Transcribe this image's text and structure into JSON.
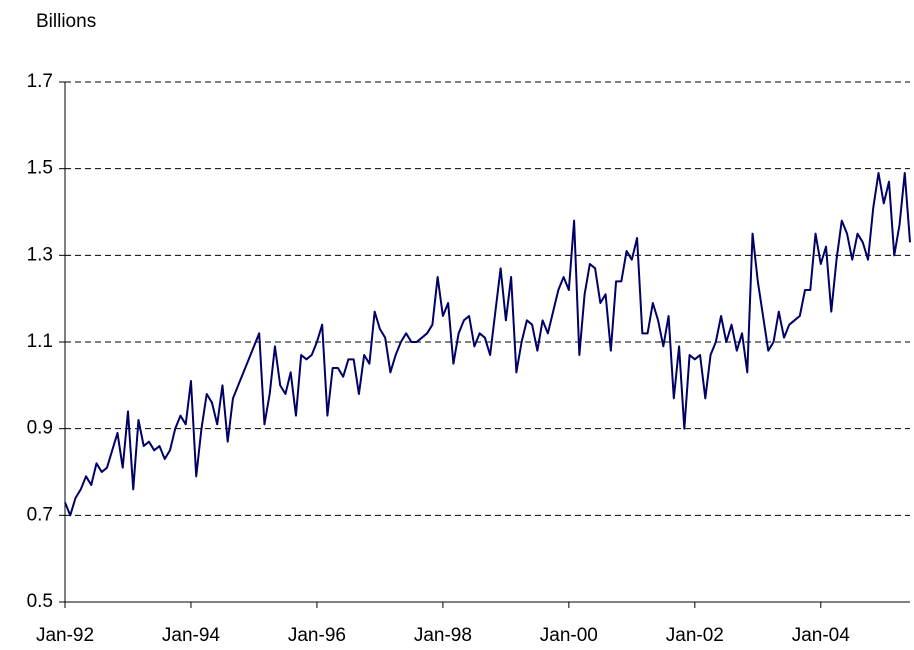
{
  "chart_data": {
    "type": "line",
    "y_label": "Billions",
    "categories": [
      "Jan-92",
      null,
      null,
      null,
      null,
      null,
      null,
      null,
      null,
      null,
      null,
      null,
      null,
      null,
      null,
      null,
      null,
      null,
      null,
      null,
      null,
      null,
      null,
      null,
      "Jan-94",
      null,
      null,
      null,
      null,
      null,
      null,
      null,
      null,
      null,
      null,
      null,
      null,
      null,
      null,
      null,
      null,
      null,
      null,
      null,
      null,
      null,
      null,
      null,
      "Jan-96",
      null,
      null,
      null,
      null,
      null,
      null,
      null,
      null,
      null,
      null,
      null,
      null,
      null,
      null,
      null,
      null,
      null,
      null,
      null,
      null,
      null,
      null,
      null,
      "Jan-98",
      null,
      null,
      null,
      null,
      null,
      null,
      null,
      null,
      null,
      null,
      null,
      null,
      null,
      null,
      null,
      null,
      null,
      null,
      null,
      null,
      null,
      null,
      null,
      "Jan-00",
      null,
      null,
      null,
      null,
      null,
      null,
      null,
      null,
      null,
      null,
      null,
      null,
      null,
      null,
      null,
      null,
      null,
      null,
      null,
      null,
      null,
      null,
      null,
      "Jan-02",
      null,
      null,
      null,
      null,
      null,
      null,
      null,
      null,
      null,
      null,
      null,
      null,
      null,
      null,
      null,
      null,
      null,
      null,
      null,
      null,
      null,
      null,
      null,
      "Jan-04",
      null,
      null,
      null,
      null,
      null,
      null,
      null,
      null,
      null,
      null,
      null,
      null,
      null,
      null,
      null,
      null,
      null
    ],
    "series": [
      {
        "color": "#000066",
        "values": [
          0.73,
          0.7,
          0.74,
          0.76,
          0.79,
          0.77,
          0.82,
          0.8,
          0.81,
          0.85,
          0.89,
          0.81,
          0.94,
          0.76,
          0.92,
          0.86,
          0.87,
          0.85,
          0.86,
          0.83,
          0.85,
          0.9,
          0.93,
          0.91,
          1.01,
          0.79,
          0.9,
          0.98,
          0.96,
          0.91,
          1.0,
          0.87,
          0.97,
          1.0,
          1.03,
          1.06,
          1.09,
          1.12,
          0.91,
          0.98,
          1.09,
          1.0,
          0.98,
          1.03,
          0.93,
          1.07,
          1.06,
          1.07,
          1.1,
          1.14,
          0.93,
          1.04,
          1.04,
          1.02,
          1.06,
          1.06,
          0.98,
          1.07,
          1.05,
          1.17,
          1.13,
          1.11,
          1.03,
          1.07,
          1.1,
          1.12,
          1.1,
          1.1,
          1.11,
          1.12,
          1.14,
          1.25,
          1.16,
          1.19,
          1.05,
          1.12,
          1.15,
          1.16,
          1.09,
          1.12,
          1.11,
          1.07,
          1.17,
          1.27,
          1.15,
          1.25,
          1.03,
          1.1,
          1.15,
          1.14,
          1.08,
          1.15,
          1.12,
          1.17,
          1.22,
          1.25,
          1.22,
          1.38,
          1.07,
          1.21,
          1.28,
          1.27,
          1.19,
          1.21,
          1.08,
          1.24,
          1.24,
          1.31,
          1.29,
          1.34,
          1.12,
          1.12,
          1.19,
          1.15,
          1.09,
          1.16,
          0.97,
          1.09,
          0.9,
          1.07,
          1.06,
          1.07,
          0.97,
          1.07,
          1.1,
          1.16,
          1.1,
          1.14,
          1.08,
          1.12,
          1.03,
          1.35,
          1.24,
          1.16,
          1.08,
          1.1,
          1.17,
          1.11,
          1.14,
          1.15,
          1.16,
          1.22,
          1.22,
          1.35,
          1.28,
          1.32,
          1.17,
          1.29,
          1.38,
          1.35,
          1.29,
          1.35,
          1.33,
          1.29,
          1.41,
          1.49,
          1.42,
          1.47,
          1.3,
          1.37,
          1.49,
          1.33
        ]
      }
    ],
    "ylim": [
      0.5,
      1.7
    ],
    "yticks": [
      0.5,
      0.7,
      0.9,
      1.1,
      1.3,
      1.5,
      1.7
    ],
    "grid": true
  }
}
